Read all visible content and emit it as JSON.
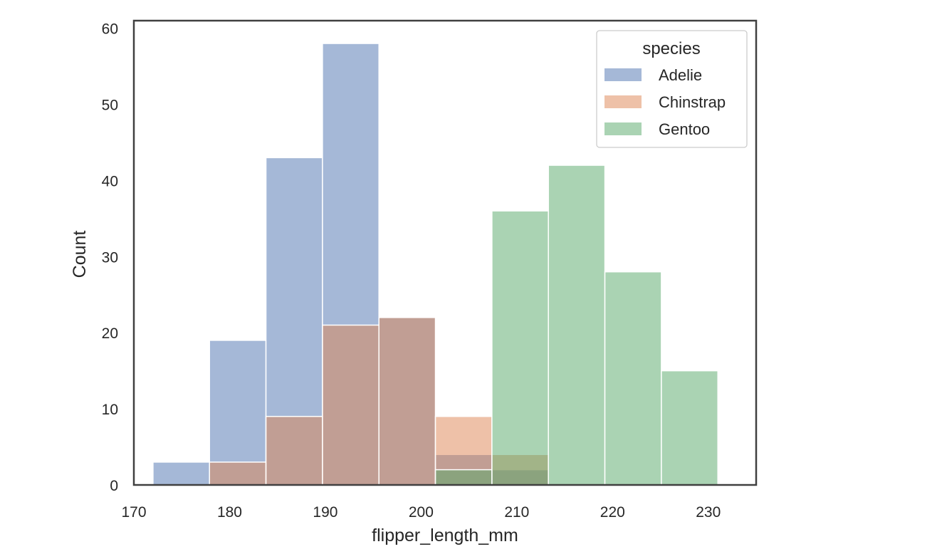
{
  "chart_data": {
    "type": "bar",
    "subtype": "overlapping histogram",
    "title": "",
    "xlabel": "flipper_length_mm",
    "ylabel": "Count",
    "xlim": [
      170,
      235
    ],
    "ylim": [
      0,
      61
    ],
    "xticks": [
      170,
      180,
      190,
      200,
      210,
      220,
      230
    ],
    "yticks": [
      0,
      10,
      20,
      30,
      40,
      50,
      60
    ],
    "grid": false,
    "legend": {
      "title": "species",
      "placement": "top-right"
    },
    "bin_edges": [
      172,
      177.9,
      183.8,
      189.7,
      195.6,
      201.5,
      207.4,
      213.3,
      219.2,
      225.1,
      231
    ],
    "series": [
      {
        "name": "Adelie",
        "color": "#4c72b0",
        "values": [
          3,
          19,
          43,
          58,
          22,
          4,
          2,
          0,
          0,
          0
        ]
      },
      {
        "name": "Chinstrap",
        "color": "#dd8452",
        "values": [
          0,
          3,
          9,
          21,
          22,
          9,
          4,
          0,
          0,
          0
        ]
      },
      {
        "name": "Gentoo",
        "color": "#55a868",
        "values": [
          0,
          0,
          0,
          0,
          0,
          2,
          36,
          42,
          28,
          15
        ]
      }
    ],
    "bar_alpha": 0.5,
    "bar_edge_color": "#ffffff",
    "axes_frame_color": "#404040"
  }
}
